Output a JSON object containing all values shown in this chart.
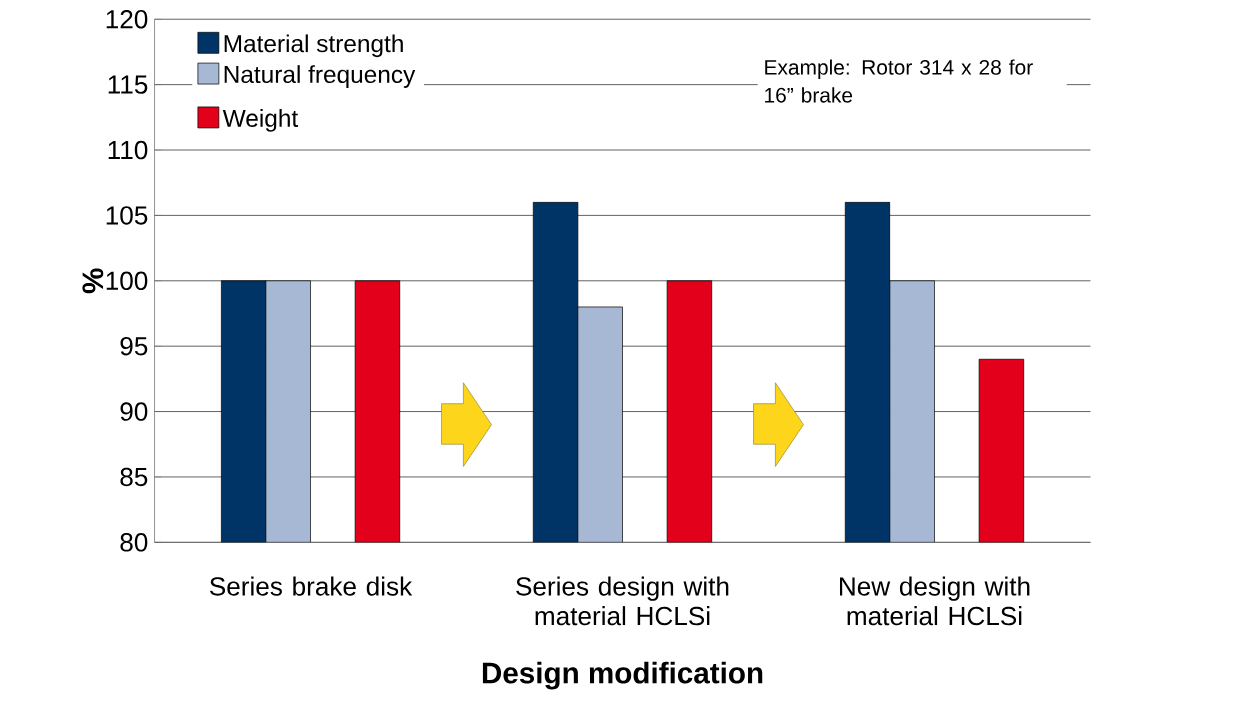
{
  "chart_data": {
    "type": "bar",
    "xlabel": "Design modification",
    "ylabel": "%",
    "categories": [
      "Series brake disk",
      "Series design with material HCLSi",
      "New design with material HCLSi"
    ],
    "series": [
      {
        "name": "Material strength",
        "color": "#003366",
        "values": [
          100,
          106,
          106
        ]
      },
      {
        "name": "Natural frequency",
        "color": "#a6b8d4",
        "values": [
          100,
          98,
          100
        ]
      },
      {
        "values": [
          null,
          null,
          null
        ]
      },
      {
        "name": "Weight",
        "color": "#e2001a",
        "values": [
          100,
          100,
          94
        ]
      }
    ],
    "ylim": [
      80,
      120
    ],
    "yticks": [
      80,
      85,
      90,
      95,
      100,
      105,
      110,
      115,
      120
    ],
    "grid": "y",
    "legend": "top left",
    "annotations": [
      "Example:  Rotor 314 x 28 for 16” brake"
    ]
  }
}
